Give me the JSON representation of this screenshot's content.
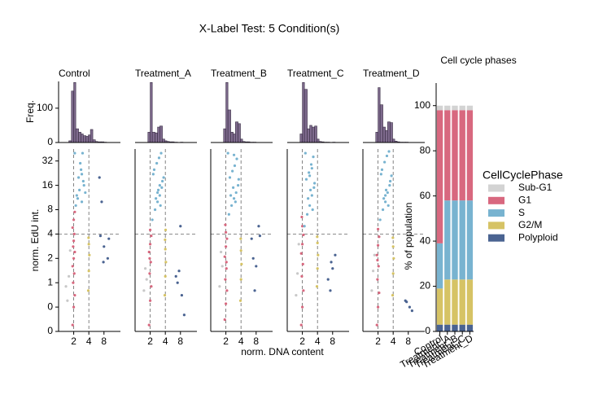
{
  "figure": {
    "title": "X-Label Test: 5 Condition(s)",
    "xlabel": "norm. DNA content",
    "hist_ylabel": "Freq.",
    "scatter_ylabel": "norm. EdU int."
  },
  "chart_data": [
    {
      "type": "histogram",
      "title": "Control",
      "color": "#7e6a8d",
      "bins": [
        1.6,
        1.8,
        2.0,
        2.2,
        2.5,
        2.8,
        3.1,
        3.5,
        3.9,
        4.3,
        4.8,
        5.4,
        6,
        7,
        8,
        9
      ],
      "values": [
        5,
        150,
        175,
        40,
        30,
        25,
        20,
        18,
        22,
        38,
        8,
        3,
        2,
        2,
        1
      ],
      "xlim": [
        1,
        17
      ],
      "ylim": [
        0,
        178
      ],
      "yticks": [
        0,
        100
      ]
    },
    {
      "type": "histogram",
      "title": "Treatment_A",
      "color": "#7e6a8d",
      "bins": [
        1.6,
        1.8,
        2.0,
        2.2,
        2.5,
        2.8,
        3.1,
        3.5,
        3.9,
        4.3,
        4.8,
        5.4,
        6,
        7,
        8,
        9
      ],
      "values": [
        0,
        30,
        175,
        30,
        28,
        45,
        48,
        10,
        5,
        3,
        2,
        2,
        1,
        0,
        1
      ],
      "xlim": [
        1,
        17
      ],
      "ylim": [
        0,
        178
      ]
    },
    {
      "type": "histogram",
      "title": "Treatment_B",
      "color": "#7e6a8d",
      "bins": [
        1.6,
        1.8,
        2.0,
        2.2,
        2.5,
        2.8,
        3.1,
        3.5,
        3.9,
        4.3,
        4.8,
        5.4,
        6,
        7,
        8,
        9
      ],
      "values": [
        0,
        40,
        175,
        95,
        30,
        25,
        60,
        55,
        10,
        3,
        2,
        2,
        1,
        1,
        0
      ],
      "xlim": [
        1,
        17
      ],
      "ylim": [
        0,
        178
      ]
    },
    {
      "type": "histogram",
      "title": "Treatment_C",
      "color": "#7e6a8d",
      "bins": [
        1.6,
        1.8,
        2.0,
        2.2,
        2.5,
        2.8,
        3.1,
        3.5,
        3.9,
        4.3,
        4.8,
        5.4,
        6,
        7,
        8,
        9
      ],
      "values": [
        0,
        25,
        175,
        155,
        40,
        50,
        45,
        48,
        10,
        3,
        2,
        1,
        1,
        0,
        1
      ],
      "xlim": [
        1,
        17
      ],
      "ylim": [
        0,
        178
      ]
    },
    {
      "type": "histogram",
      "title": "Treatment_D",
      "color": "#7e6a8d",
      "bins": [
        1.6,
        1.8,
        2.0,
        2.2,
        2.5,
        2.8,
        3.1,
        3.5,
        3.9,
        4.3,
        4.8,
        5.4,
        6,
        7,
        8,
        9
      ],
      "values": [
        0,
        30,
        160,
        110,
        45,
        35,
        60,
        58,
        10,
        4,
        2,
        1,
        1,
        1,
        0
      ],
      "xlim": [
        1,
        17
      ],
      "ylim": [
        0,
        178
      ]
    },
    {
      "type": "scatter",
      "xlim": [
        1,
        17
      ],
      "xticks": [
        2,
        4,
        8
      ],
      "ylim": [
        0.25,
        45
      ],
      "yticks": [
        {
          "value": 0.25,
          "label": "0"
        },
        {
          "value": 0.5,
          "label": "0"
        },
        1,
        2,
        4,
        8,
        16,
        32
      ],
      "log_x": true,
      "log_y": true,
      "vlines": [
        2,
        4
      ],
      "hlines": [
        4
      ],
      "series": [
        {
          "color": "#c8c8c8",
          "x": [
            1.5,
            1.6,
            1.7,
            1.4
          ],
          "values": [
            0.6,
            1.2,
            2.5,
            0.9
          ]
        },
        {
          "color": "#d8687f",
          "x": [
            1.9,
            2.0,
            2.1,
            1.95,
            2.05,
            1.9,
            2.0,
            2.1,
            1.95,
            2.0,
            2.05,
            1.9,
            2.0,
            2.1
          ],
          "values": [
            0.3,
            0.5,
            0.7,
            1.0,
            1.3,
            1.6,
            2.0,
            2.4,
            2.8,
            3.3,
            4.0,
            4.8,
            6,
            7.5
          ]
        },
        {
          "color": "#78b3d0",
          "x": [
            2.3,
            2.6,
            2.9,
            3.2,
            2.5,
            2.8,
            3.1,
            3.4,
            2.2,
            2.7,
            3.0,
            2.4,
            2.1,
            2.9
          ],
          "values": [
            12,
            14,
            10,
            16,
            20,
            25,
            18,
            13,
            9,
            30,
            40,
            11,
            40,
            22
          ]
        },
        {
          "color": "#d6c365",
          "x": [
            3.9,
            4.0,
            4.1,
            4.0,
            3.95
          ],
          "values": [
            0.8,
            1.4,
            2.2,
            3.0,
            3.6
          ]
        },
        {
          "color": "#4a6391",
          "x": [
            6.5,
            7.2,
            8.0,
            9.5,
            10,
            7.8,
            6.8
          ],
          "values": [
            20,
            10,
            2.8,
            2.0,
            3.5,
            1.8,
            3.8
          ]
        }
      ]
    },
    {
      "type": "scatter",
      "xlim": [
        1,
        17
      ],
      "xticks": [
        2,
        4,
        8
      ],
      "ylim": [
        0.25,
        45
      ],
      "log_x": true,
      "log_y": true,
      "vlines": [
        2,
        4
      ],
      "hlines": [
        4
      ],
      "series": [
        {
          "color": "#c8c8c8",
          "x": [
            1.5,
            1.6,
            1.7
          ],
          "values": [
            0.8,
            1.5,
            1.1
          ]
        },
        {
          "color": "#d8687f",
          "x": [
            1.9,
            2.0,
            2.1,
            1.95,
            2.05,
            1.9,
            2.0,
            2.1,
            2.0,
            1.95
          ],
          "values": [
            0.3,
            0.6,
            0.9,
            1.3,
            1.8,
            2.4,
            3.0,
            3.8,
            4.5,
            2.0
          ]
        },
        {
          "color": "#78b3d0",
          "x": [
            2.2,
            2.5,
            2.8,
            3.1,
            3.4,
            3.7,
            2.4,
            2.7,
            3.0,
            3.3,
            2.6,
            2.9,
            3.2,
            3.5,
            2.3,
            2.8,
            3.1
          ],
          "values": [
            6,
            8,
            10,
            12,
            15,
            20,
            25,
            30,
            35,
            40,
            11,
            14,
            9,
            18,
            22,
            13,
            16
          ]
        },
        {
          "color": "#d6c365",
          "x": [
            3.9,
            4.0,
            4.1,
            4.0,
            3.95,
            4.05
          ],
          "values": [
            0.7,
            1.2,
            1.8,
            2.6,
            3.4,
            4.5
          ]
        },
        {
          "color": "#4a6391",
          "x": [
            6.5,
            7.5,
            8.5,
            9.5,
            8.0,
            7.0
          ],
          "values": [
            1.2,
            1.4,
            0.7,
            0.4,
            5,
            1.0
          ]
        }
      ]
    },
    {
      "type": "scatter",
      "xlim": [
        1,
        17
      ],
      "xticks": [
        2,
        4,
        8
      ],
      "ylim": [
        0.25,
        45
      ],
      "log_x": true,
      "log_y": true,
      "vlines": [
        2,
        4
      ],
      "hlines": [
        4
      ],
      "series": [
        {
          "color": "#c8c8c8",
          "x": [
            1.5,
            1.7,
            1.6
          ],
          "values": [
            0.9,
            1.6,
            2.4
          ]
        },
        {
          "color": "#d8687f",
          "x": [
            1.9,
            2.0,
            2.1,
            1.95,
            2.05,
            1.9,
            2.0,
            2.1,
            2.0,
            1.95,
            2.05
          ],
          "values": [
            0.35,
            0.55,
            0.8,
            1.1,
            1.5,
            2.1,
            2.8,
            3.5,
            4.2,
            5.2,
            1.8
          ]
        },
        {
          "color": "#78b3d0",
          "x": [
            2.3,
            2.6,
            2.9,
            3.2,
            3.5,
            2.4,
            2.7,
            3.0,
            3.3,
            2.5,
            2.8,
            3.1,
            3.6,
            2.2,
            2.9
          ],
          "values": [
            7,
            9,
            11,
            13,
            16,
            20,
            24,
            28,
            34,
            12,
            15,
            10,
            19,
            40,
            38
          ]
        },
        {
          "color": "#d6c365",
          "x": [
            3.9,
            4.0,
            4.1,
            4.0,
            3.95
          ],
          "values": [
            0.6,
            1.1,
            1.7,
            2.5,
            3.5
          ]
        },
        {
          "color": "#4a6391",
          "x": [
            6.5,
            7.0,
            8.0,
            9.0,
            9.5,
            7.5
          ],
          "values": [
            3.5,
            2.0,
            1.6,
            5,
            3.8,
            0.8
          ]
        }
      ]
    },
    {
      "type": "scatter",
      "xlim": [
        1,
        17
      ],
      "xticks": [
        2,
        4,
        8
      ],
      "ylim": [
        0.25,
        45
      ],
      "log_x": true,
      "log_y": true,
      "vlines": [
        2,
        4
      ],
      "hlines": [
        4
      ],
      "series": [
        {
          "color": "#c8c8c8",
          "x": [
            1.5,
            1.6,
            1.7
          ],
          "values": [
            0.7,
            1.3,
            3.0
          ]
        },
        {
          "color": "#d8687f",
          "x": [
            1.9,
            2.0,
            2.1,
            1.95,
            2.05,
            1.9,
            2.0,
            2.1,
            2.0,
            1.95
          ],
          "values": [
            0.3,
            0.5,
            0.8,
            1.2,
            1.7,
            2.3,
            3.0,
            3.9,
            5.0,
            6.5
          ]
        },
        {
          "color": "#78b3d0",
          "x": [
            2.2,
            2.5,
            2.8,
            3.1,
            3.4,
            2.4,
            2.7,
            3.0,
            3.3,
            2.6,
            2.9,
            3.2,
            3.5,
            2.3,
            2.8,
            3.1
          ],
          "values": [
            5,
            7,
            9,
            12,
            15,
            19,
            23,
            29,
            36,
            11,
            14,
            8,
            17,
            40,
            21,
            26
          ]
        },
        {
          "color": "#d6c365",
          "x": [
            3.9,
            4.0,
            4.1,
            4.0,
            3.95
          ],
          "values": [
            0.9,
            1.5,
            2.2,
            3.1,
            3.7
          ]
        },
        {
          "color": "#4a6391",
          "x": [
            6.5,
            7.2,
            8.0,
            9.0,
            7.5
          ],
          "values": [
            1.1,
            0.8,
            1.5,
            2.2,
            1.8
          ]
        }
      ]
    },
    {
      "type": "scatter",
      "xlim": [
        1,
        17
      ],
      "xticks": [
        2,
        4,
        8
      ],
      "ylim": [
        0.25,
        45
      ],
      "log_x": true,
      "log_y": true,
      "vlines": [
        2,
        4
      ],
      "hlines": [
        4
      ],
      "series": [
        {
          "color": "#c8c8c8",
          "x": [
            1.5,
            1.6,
            1.7
          ],
          "values": [
            0.8,
            1.4,
            2.2
          ]
        },
        {
          "color": "#d8687f",
          "x": [
            1.9,
            2.0,
            2.1,
            1.95,
            2.05,
            1.9,
            2.0,
            2.1,
            2.0,
            1.95
          ],
          "values": [
            0.3,
            0.5,
            0.75,
            1.1,
            1.6,
            2.2,
            2.9,
            3.7,
            4.6,
            1.9
          ]
        },
        {
          "color": "#78b3d0",
          "x": [
            2.2,
            2.5,
            2.8,
            3.1,
            3.4,
            3.7,
            2.4,
            2.7,
            3.0,
            3.3,
            2.6,
            2.9,
            3.2,
            3.5,
            2.3,
            2.8
          ],
          "values": [
            6,
            8,
            10,
            13,
            16,
            21,
            25,
            31,
            37,
            42,
            11,
            14,
            9,
            18,
            22,
            12
          ]
        },
        {
          "color": "#d6c365",
          "x": [
            3.9,
            4.0,
            4.1,
            4.0,
            3.95
          ],
          "values": [
            0.7,
            1.3,
            2.0,
            2.8,
            3.6
          ]
        },
        {
          "color": "#4a6391",
          "x": [
            7.0,
            7.4,
            8.5,
            9.5
          ],
          "values": [
            0.6,
            0.58,
            0.5,
            0.45
          ]
        }
      ]
    },
    {
      "type": "stacked_bar",
      "title": "Cell cycle phases",
      "ylabel": "% of population",
      "legend_title": "CellCyclePhase",
      "categories": [
        "Control",
        "Treatment_A",
        "Treatment_B",
        "Treatment_C",
        "Treatment_D"
      ],
      "ylim": [
        0,
        110
      ],
      "yticks": [
        0,
        20,
        40,
        60,
        80,
        100
      ],
      "series": [
        {
          "name": "Polyploid",
          "color": "#4a6391",
          "values": [
            3,
            3,
            3,
            3,
            3
          ]
        },
        {
          "name": "G2/M",
          "color": "#d6c365",
          "values": [
            16,
            20,
            20,
            20,
            20
          ]
        },
        {
          "name": "S",
          "color": "#78b3d0",
          "values": [
            20,
            35,
            35,
            35,
            35
          ]
        },
        {
          "name": "G1",
          "color": "#d8687f",
          "values": [
            59,
            40,
            40,
            40,
            40
          ]
        },
        {
          "name": "Sub-G1",
          "color": "#d3d3d3",
          "values": [
            2,
            2,
            2,
            2,
            2
          ]
        }
      ]
    }
  ]
}
